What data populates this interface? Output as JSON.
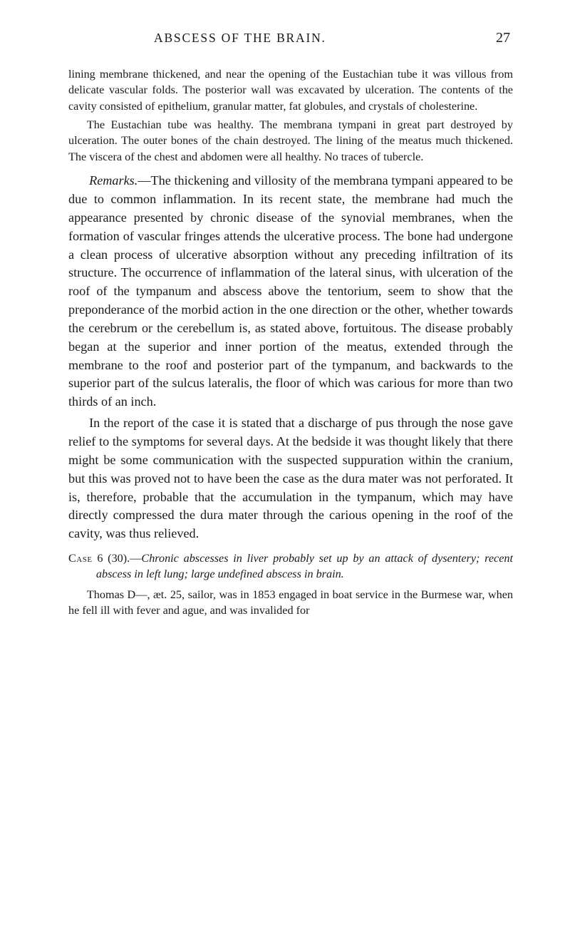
{
  "page": {
    "running_title": "ABSCESS OF THE BRAIN.",
    "number": "27"
  },
  "paragraphs": {
    "p1": "lining membrane thickened, and near the opening of the Eustachian tube it was villous from delicate vascular folds. The posterior wall was excavated by ulceration. The contents of the cavity consisted of epithelium, granular matter, fat globules, and crystals of cholesterine.",
    "p2": "The Eustachian tube was healthy. The membrana tympani in great part destroyed by ulceration. The outer bones of the chain destroyed. The lining of the meatus much thickened. The viscera of the chest and abdomen were all healthy. No traces of tubercle.",
    "p3_lead": "Remarks.",
    "p3": "—The thickening and villosity of the membrana tympani appeared to be due to common inflammation. In its recent state, the membrane had much the appearance presented by chronic disease of the synovial membranes, when the formation of vascular fringes attends the ulcerative process. The bone had undergone a clean process of ulcerative absorption without any preceding infiltration of its structure. The occurrence of inflammation of the lateral sinus, with ulceration of the roof of the tympanum and abscess above the tentorium, seem to show that the preponderance of the morbid action in the one direction or the other, whether towards the cerebrum or the cerebellum is, as stated above, fortuitous. The disease probably began at the superior and inner portion of the meatus, extended through the membrane to the roof and posterior part of the tympanum, and backwards to the superior part of the sulcus lateralis, the floor of which was carious for more than two thirds of an inch.",
    "p4": "In the report of the case it is stated that a discharge of pus through the nose gave relief to the symptoms for several days. At the bedside it was thought likely that there might be some communication with the suspected suppuration within the cranium, but this was proved not to have been the case as the dura mater was not perforated. It is, therefore, probable that the accumulation in the tympanum, which may have directly compressed the dura mater through the carious opening in the roof of the cavity, was thus relieved.",
    "case_label": "Case",
    "case_no": " 6 (30).—",
    "case_title": "Chronic abscesses in liver probably set up by an attack of dysentery; recent abscess in left lung; large undefined abscess in brain.",
    "p6": "Thomas D—, æt. 25, sailor, was in 1853 engaged in boat service in the Burmese war, when he fell ill with fever and ague, and was invalided for"
  }
}
